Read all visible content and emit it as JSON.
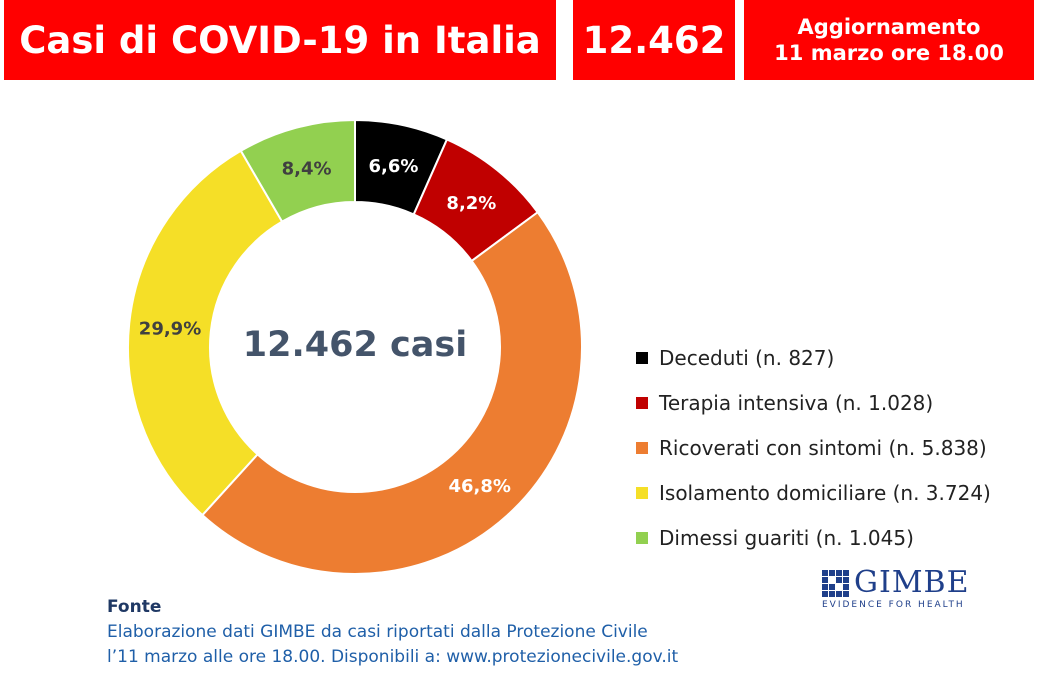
{
  "header": {
    "title": "Casi di COVID-19 in Italia",
    "total": "12.462",
    "update_line1": "Aggiornamento",
    "update_line2": "11 marzo ore 18.00"
  },
  "chart_data": {
    "type": "pie",
    "donut": true,
    "center_label": "12.462 casi",
    "legend_position": "right",
    "slices": [
      {
        "name": "Deceduti (n. 827)",
        "value": 827,
        "percent_label": "6,6%",
        "color": "#000000",
        "label_color": "#ffffff"
      },
      {
        "name": "Terapia intensiva (n. 1.028)",
        "value": 1028,
        "percent_label": "8,2%",
        "color": "#c00000",
        "label_color": "#ffffff"
      },
      {
        "name": "Ricoverati con sintomi (n. 5.838)",
        "value": 5838,
        "percent_label": "46,8%",
        "color": "#ed7d31",
        "label_color": "#ffffff"
      },
      {
        "name": "Isolamento domiciliare (n. 3.724)",
        "value": 3724,
        "percent_label": "29,9%",
        "color": "#f5df27",
        "label_color": "#404040"
      },
      {
        "name": "Dimessi guariti (n. 1.045)",
        "value": 1045,
        "percent_label": "8,4%",
        "color": "#92d050",
        "label_color": "#404040"
      }
    ]
  },
  "source": {
    "title": "Fonte",
    "line1": "Elaborazione dati GIMBE da casi riportati dalla Protezione Civile",
    "line2": "l’11 marzo alle ore 18.00. Disponibili a: www.protezionecivile.gov.it"
  },
  "logo": {
    "name": "GIMBE",
    "tagline": "EVIDENCE FOR HEALTH"
  }
}
